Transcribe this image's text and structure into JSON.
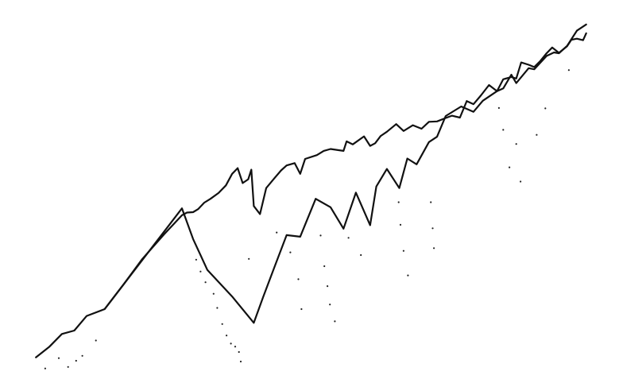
{
  "chart_data": {
    "type": "line",
    "title": "",
    "xlabel": "",
    "ylabel": "",
    "grid": false,
    "legend": "none",
    "axes_visible": false,
    "xlim": [
      0,
      100
    ],
    "ylim": [
      0,
      100
    ],
    "colors": {
      "line": "#111111",
      "dots": "#222222",
      "background": "#ffffff"
    },
    "series": [
      {
        "style": "line",
        "x": [
          5.8,
          8,
          10,
          12,
          14,
          16.9,
          20,
          23,
          26.5,
          29.4,
          30.2,
          31.2,
          32,
          33,
          34,
          35.3,
          36.5,
          37.5,
          38.4,
          39.2,
          40.1,
          40.6,
          41,
          42,
          43,
          44.3,
          45.4,
          46.3,
          47.6,
          48.5,
          49.3,
          51.2,
          52.3,
          53.4,
          54.6,
          55.5,
          56,
          57,
          58.8,
          59.8,
          60.6,
          61.5,
          62.5,
          64,
          65.2,
          66.7,
          68.1,
          69.3,
          70.6,
          72,
          73,
          74.3,
          75.4,
          76.5,
          77.7,
          79,
          80.3,
          81.3,
          82.6,
          83.4,
          84.2,
          85.4,
          86.3,
          87.3,
          88.3,
          89.2,
          90.3,
          91.6,
          92.3,
          93.2,
          94.2,
          94.7
        ],
        "y": [
          6.7,
          9.5,
          12.8,
          13.7,
          17.5,
          19.3,
          25.8,
          32.4,
          38.8,
          43.8,
          44.5,
          44.6,
          45.4,
          47.1,
          48.1,
          49.6,
          51.6,
          54.6,
          56.1,
          52.2,
          53.2,
          55.7,
          46.2,
          44.1,
          50.9,
          53.4,
          55.5,
          56.8,
          57.4,
          54.6,
          58.5,
          59.5,
          60.6,
          61.1,
          60.8,
          60.6,
          63.1,
          62.3,
          64.4,
          61.9,
          62.6,
          64.5,
          65.6,
          67.6,
          65.8,
          67.3,
          66.4,
          68.2,
          68.3,
          69.2,
          69.8,
          69.3,
          73.6,
          72.8,
          75.1,
          77.8,
          76.2,
          79.3,
          79.9,
          79.5,
          83.7,
          83.1,
          82.5,
          84.1,
          86.1,
          87.6,
          86.2,
          87.9,
          89.6,
          89.9,
          89.5,
          91.3
        ]
      },
      {
        "style": "line",
        "x": [
          16.9,
          29.4,
          31.2,
          33.5,
          37.5,
          41,
          42.5,
          44.3,
          46.3,
          48.5,
          51,
          53.4,
          55.5,
          57.5,
          59.8,
          60.8,
          62.5,
          64.5,
          65.8,
          67.3,
          69.3,
          70.6,
          72,
          74.5,
          76.5,
          78,
          80.3,
          81.3,
          82.6,
          83.4,
          85.4,
          86.3,
          88.3,
          89.5,
          90.3,
          91.6,
          93.2,
          94.7
        ],
        "y": [
          19.3,
          45.6,
          37.6,
          29.5,
          22.6,
          15.7,
          22.4,
          30.1,
          38.6,
          38.2,
          48.1,
          45.9,
          40.3,
          49.7,
          41.2,
          51.3,
          55.9,
          50.9,
          58.6,
          57.1,
          62.9,
          64.3,
          69.7,
          72.2,
          70.8,
          73.7,
          76.2,
          76.9,
          80.5,
          78.3,
          82.2,
          81.9,
          85.4,
          86.3,
          86.1,
          88.0,
          92.0,
          93.6
        ]
      },
      {
        "style": "dots",
        "x": [
          7.3,
          9.5,
          11,
          12.3,
          13.3,
          15.5,
          31.7,
          32.4,
          33.2,
          34.5,
          35.1,
          35.9,
          36.6,
          37.3,
          38,
          38.6,
          38.9,
          40.2,
          44.7,
          46.9,
          48.2,
          48.7,
          51.8,
          52.4,
          52.9,
          53.3,
          54.1,
          56.3,
          58.3,
          64.4,
          64.7,
          65.2,
          65.9,
          69.6,
          69.9,
          70.1,
          80.6,
          81.3,
          82.3,
          83.4,
          84.1,
          86.7,
          88.1,
          91.9
        ],
        "y": [
          3.8,
          6.5,
          4.2,
          5.8,
          7.1,
          11.1,
          32.2,
          29.1,
          26.3,
          23.3,
          19.6,
          15.4,
          12.4,
          10.3,
          9.5,
          8.1,
          5.6,
          32.4,
          39.3,
          34.1,
          27.1,
          19.3,
          38.5,
          30.5,
          25.3,
          20.5,
          16.1,
          37.9,
          33.4,
          47.2,
          41.3,
          34.5,
          28.1,
          47.2,
          40.4,
          35.2,
          71.8,
          66.1,
          56.3,
          62.4,
          52.6,
          64.8,
          71.7,
          81.7
        ]
      }
    ]
  }
}
